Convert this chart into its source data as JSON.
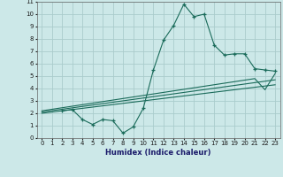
{
  "xlabel": "Humidex (Indice chaleur)",
  "xlim": [
    -0.5,
    23.5
  ],
  "ylim": [
    0,
    11
  ],
  "xticks": [
    0,
    1,
    2,
    3,
    4,
    5,
    6,
    7,
    8,
    9,
    10,
    11,
    12,
    13,
    14,
    15,
    16,
    17,
    18,
    19,
    20,
    21,
    22,
    23
  ],
  "yticks": [
    0,
    1,
    2,
    3,
    4,
    5,
    6,
    7,
    8,
    9,
    10,
    11
  ],
  "bg_color": "#cce8e8",
  "grid_color": "#aacccc",
  "line_color": "#1a6b5a",
  "series1_x": [
    2,
    3,
    4,
    5,
    6,
    7,
    8,
    9,
    10,
    11,
    12,
    13,
    14,
    15,
    16,
    17,
    18,
    19,
    20,
    21,
    22,
    23
  ],
  "series1_y": [
    2.2,
    2.3,
    1.5,
    1.1,
    1.5,
    1.4,
    0.4,
    0.9,
    2.4,
    5.5,
    7.9,
    9.1,
    10.8,
    9.8,
    10.0,
    7.5,
    6.7,
    6.8,
    6.8,
    5.6,
    5.5,
    5.4
  ],
  "series2_x": [
    0,
    23
  ],
  "series2_y": [
    2.1,
    4.7
  ],
  "series3_x": [
    0,
    21,
    22,
    23
  ],
  "series3_y": [
    2.2,
    4.8,
    3.9,
    5.2
  ],
  "series4_x": [
    0,
    23
  ],
  "series4_y": [
    2.0,
    4.3
  ]
}
